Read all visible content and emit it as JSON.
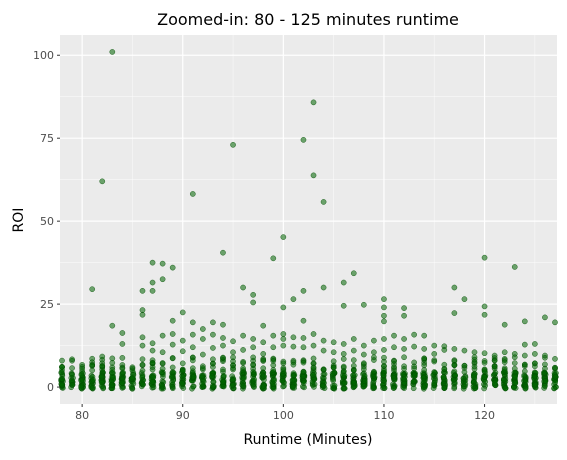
{
  "chart_data": {
    "type": "scatter",
    "title": "Zoomed-in: 80 - 125 minutes runtime",
    "xlabel": "Runtime (Minutes)",
    "ylabel": "ROI",
    "xlim": [
      77.8,
      127.2
    ],
    "ylim": [
      -5.1,
      106.1
    ],
    "x_ticks": [
      80,
      90,
      100,
      110,
      120
    ],
    "y_ticks": [
      0,
      25,
      50,
      75,
      100
    ],
    "grid": true,
    "legend": "none",
    "colors": {
      "panel_background": "#ebebeb",
      "grid_major": "#ffffff",
      "point_fill": "#006400",
      "point_opacity": 0.55
    },
    "dense_band": {
      "x_range": [
        78,
        127
      ],
      "y_range": [
        -0.5,
        4.5
      ],
      "note": "very many overlapping points near zero ROI at every integer runtime"
    },
    "points": [
      [
        78,
        6.0
      ],
      [
        78,
        2.5
      ],
      [
        81,
        29.5
      ],
      [
        81,
        6.5
      ],
      [
        82,
        62
      ],
      [
        82,
        9.2
      ],
      [
        83,
        101
      ],
      [
        83,
        18.5
      ],
      [
        84,
        16.3
      ],
      [
        84,
        13.0
      ],
      [
        84,
        8.8
      ],
      [
        86,
        29.0
      ],
      [
        86,
        23.2
      ],
      [
        86,
        21.8
      ],
      [
        86,
        15.0
      ],
      [
        86,
        12.5
      ],
      [
        87,
        37.5
      ],
      [
        87,
        31.5
      ],
      [
        87,
        29.0
      ],
      [
        87,
        13.2
      ],
      [
        87,
        11.0
      ],
      [
        88,
        37.2
      ],
      [
        88,
        32.5
      ],
      [
        88,
        15.5
      ],
      [
        88,
        10.5
      ],
      [
        89,
        36.0
      ],
      [
        89,
        20.0
      ],
      [
        89,
        16.0
      ],
      [
        89,
        12.8
      ],
      [
        90,
        22.5
      ],
      [
        90,
        14.0
      ],
      [
        90,
        10.8
      ],
      [
        91,
        58.2
      ],
      [
        91,
        19.5
      ],
      [
        91,
        15.8
      ],
      [
        91,
        12.0
      ],
      [
        92,
        17.5
      ],
      [
        92,
        14.5
      ],
      [
        92,
        9.8
      ],
      [
        93,
        19.5
      ],
      [
        93,
        15.8
      ],
      [
        93,
        11.8
      ],
      [
        94,
        40.5
      ],
      [
        94,
        18.8
      ],
      [
        94,
        14.8
      ],
      [
        94,
        12.5
      ],
      [
        95,
        73
      ],
      [
        95,
        13.8
      ],
      [
        95,
        10.5
      ],
      [
        96,
        30.0
      ],
      [
        96,
        15.5
      ],
      [
        96,
        11.2
      ],
      [
        97,
        27.8
      ],
      [
        97,
        25.5
      ],
      [
        97,
        14.5
      ],
      [
        97,
        12.0
      ],
      [
        98,
        18.5
      ],
      [
        98,
        13.5
      ],
      [
        98,
        10.0
      ],
      [
        99,
        38.8
      ],
      [
        99,
        15.5
      ],
      [
        99,
        12.0
      ],
      [
        100,
        45.2
      ],
      [
        100,
        24.0
      ],
      [
        100,
        16.0
      ],
      [
        100,
        14.5
      ],
      [
        100,
        12.5
      ],
      [
        101,
        26.5
      ],
      [
        101,
        15.0
      ],
      [
        101,
        12.2
      ],
      [
        102,
        74.5
      ],
      [
        102,
        29.0
      ],
      [
        102,
        20.0
      ],
      [
        102,
        14.8
      ],
      [
        102,
        12.0
      ],
      [
        103,
        85.8
      ],
      [
        103,
        63.8
      ],
      [
        103,
        16.0
      ],
      [
        103,
        12.5
      ],
      [
        104,
        55.8
      ],
      [
        104,
        30.0
      ],
      [
        104,
        14.0
      ],
      [
        104,
        11.0
      ],
      [
        105,
        13.5
      ],
      [
        105,
        10.5
      ],
      [
        106,
        31.5
      ],
      [
        106,
        24.5
      ],
      [
        106,
        13.0
      ],
      [
        106,
        10.0
      ],
      [
        107,
        34.3
      ],
      [
        107,
        14.5
      ],
      [
        107,
        11.0
      ],
      [
        108,
        24.8
      ],
      [
        108,
        12.5
      ],
      [
        108,
        9.8
      ],
      [
        109,
        14.0
      ],
      [
        109,
        10.5
      ],
      [
        110,
        26.5
      ],
      [
        110,
        24.0
      ],
      [
        110,
        21.5
      ],
      [
        110,
        19.8
      ],
      [
        110,
        14.5
      ],
      [
        110,
        11.2
      ],
      [
        111,
        15.5
      ],
      [
        111,
        12.0
      ],
      [
        112,
        23.8
      ],
      [
        112,
        21.5
      ],
      [
        112,
        14.5
      ],
      [
        112,
        11.5
      ],
      [
        113,
        15.8
      ],
      [
        113,
        12.2
      ],
      [
        114,
        15.5
      ],
      [
        114,
        11.5
      ],
      [
        115,
        12.5
      ],
      [
        115,
        10.0
      ],
      [
        116,
        12.3
      ],
      [
        116,
        11.2
      ],
      [
        117,
        30.0
      ],
      [
        117,
        22.3
      ],
      [
        117,
        11.5
      ],
      [
        118,
        26.5
      ],
      [
        118,
        11.0
      ],
      [
        119,
        10.5
      ],
      [
        119,
        9.0
      ],
      [
        120,
        39.0
      ],
      [
        120,
        24.3
      ],
      [
        120,
        21.8
      ],
      [
        120,
        10.2
      ],
      [
        121,
        9.5
      ],
      [
        121,
        8.0
      ],
      [
        122,
        18.8
      ],
      [
        122,
        10.5
      ],
      [
        123,
        36.2
      ],
      [
        123,
        10.0
      ],
      [
        124,
        19.8
      ],
      [
        124,
        12.8
      ],
      [
        124,
        9.5
      ],
      [
        125,
        13.0
      ],
      [
        125,
        10.0
      ],
      [
        126,
        21.0
      ],
      [
        126,
        9.5
      ],
      [
        127,
        19.5
      ],
      [
        127,
        8.5
      ]
    ]
  }
}
